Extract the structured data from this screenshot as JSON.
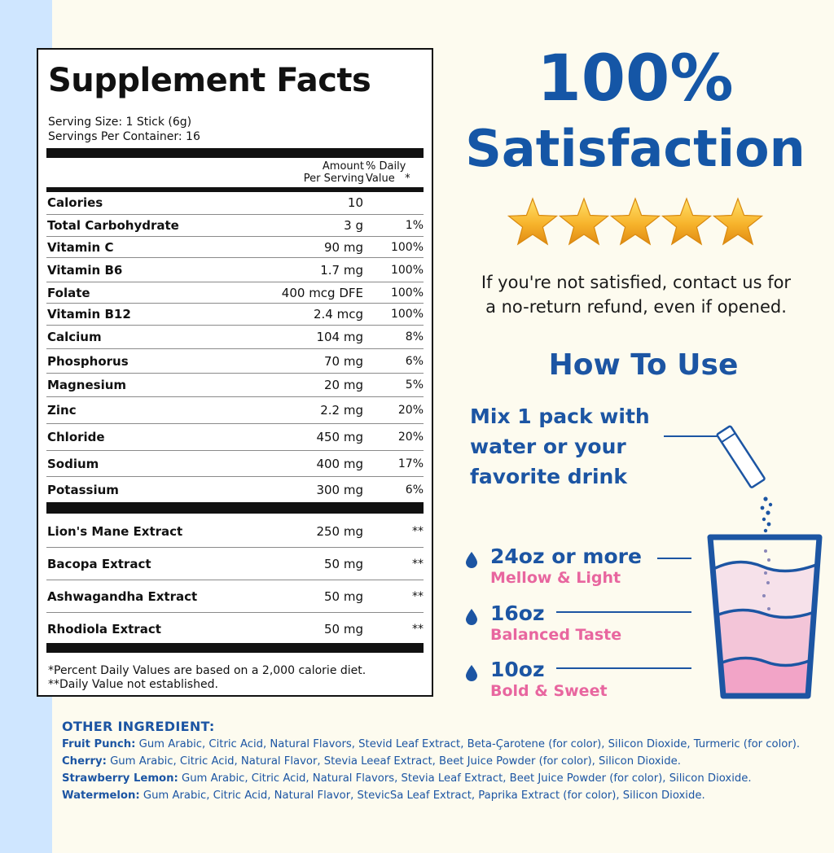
{
  "facts": {
    "title": "Supplement Facts",
    "serving_size": "Serving Size: 1 Stick (6g)",
    "servings_per_container": "Servings Per Container: 16",
    "header_amount_line1": "Amount",
    "header_amount_line2": "Per Serving",
    "header_dv_line1": "% Daily",
    "header_dv_line2": "Value",
    "header_dv_star": "*",
    "nutrients": [
      {
        "name": "Calories",
        "amount": "10",
        "dv": ""
      },
      {
        "name": "Total Carbohydrate",
        "amount": "3 g",
        "dv": "1%"
      },
      {
        "name": "Vitamin C",
        "amount": "90 mg",
        "dv": "100%"
      },
      {
        "name": "Vitamin B6",
        "amount": "1.7 mg",
        "dv": "100%"
      },
      {
        "name": "Folate",
        "amount": "400 mcg DFE",
        "dv": "100%"
      },
      {
        "name": "Vitamin B12",
        "amount": "2.4 mcg",
        "dv": "100%"
      },
      {
        "name": "Calcium",
        "amount": "104 mg",
        "dv": "8%"
      },
      {
        "name": "Phosphorus",
        "amount": "70 mg",
        "dv": "6%"
      },
      {
        "name": "Magnesium",
        "amount": "20 mg",
        "dv": "5%"
      },
      {
        "name": "Zinc",
        "amount": "2.2 mg",
        "dv": "20%"
      },
      {
        "name": "Chloride",
        "amount": "450 mg",
        "dv": "20%"
      },
      {
        "name": "Sodium",
        "amount": "400 mg",
        "dv": "17%"
      },
      {
        "name": "Potassium",
        "amount": "300 mg",
        "dv": "6%"
      }
    ],
    "extracts": [
      {
        "name": "Lion's Mane Extract",
        "amount": "250 mg",
        "dv": "**"
      },
      {
        "name": "Bacopa Extract",
        "amount": "50 mg",
        "dv": "**"
      },
      {
        "name": "Ashwagandha Extract",
        "amount": "50 mg",
        "dv": "**"
      },
      {
        "name": "Rhodiola Extract",
        "amount": "50 mg",
        "dv": "**"
      }
    ],
    "footnote1": "*Percent Daily Values are based on a 2,000 calorie diet.",
    "footnote2": "**Daily Value not established."
  },
  "satisfaction": {
    "headline1": "100%",
    "headline2": "Satisfaction",
    "stars": 5,
    "text_line1": "If you're not satisfied, contact us for",
    "text_line2": "a no-return refund, even if opened."
  },
  "how_to_use": {
    "title": "How To Use",
    "mix_line1": "Mix 1 pack with",
    "mix_line2": "water or your",
    "mix_line3": "favorite drink",
    "levels": [
      {
        "label": "24oz or more",
        "sub": "Mellow & Light"
      },
      {
        "label": "16oz",
        "sub": "Balanced Taste"
      },
      {
        "label": "10oz",
        "sub": "Bold & Sweet"
      }
    ]
  },
  "ingredients": {
    "title": "OTHER INGREDIENT:",
    "items": [
      {
        "flavor": "Fruit Punch:",
        "text": " Gum Arabic, Citric Acid, Natural Flavors, Stevid Leaf Extract, Beta-Çarotene (for color), Silicon Dioxide, Turmeric (for color)."
      },
      {
        "flavor": "Cherry:",
        "text": " Gum Arabic, Citric Acid, Natural Flavor, Stevia Leeaf Extract, Beet Juice Powder (for color), Silicon Dioxide."
      },
      {
        "flavor": "Strawberry Lemon:",
        "text": " Gum Arabic, Citric Acid, Natural Flavors, Stevia Leaf Extract, Beet Juice Powder (for color), Silicon Dioxide."
      },
      {
        "flavor": "Watermelon:",
        "text": " Gum Arabic, Citric Acid, Natural Flavor, StevicSa Leaf Extract, Paprika Extract (for color), Silicon Dioxide."
      }
    ]
  },
  "colors": {
    "brand_blue": "#1c55a3",
    "pink": "#e8669f",
    "background": "#fdfbef",
    "side_strip": "#cfe6ff"
  }
}
